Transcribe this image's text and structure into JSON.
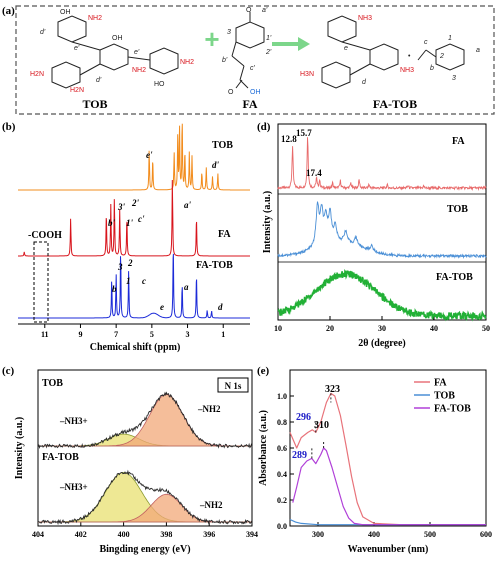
{
  "panel_a": {
    "label": "(a)",
    "names": [
      "TOB",
      "FA",
      "FA-TOB"
    ],
    "plus": "+",
    "dot": "•",
    "tob_atoms": {
      "nh2": "NH2",
      "h2n": "H2N",
      "oh": "OH",
      "ho": "HO",
      "o": "O",
      "d_prime": "d'",
      "e_prime": "e'"
    },
    "fa_atoms": {
      "a_prime": "a'",
      "one_prime": "1'",
      "two_prime": "2'",
      "three": "3",
      "b_prime": "b'",
      "c_prime": "c'",
      "oh": "OH",
      "o": "O"
    },
    "fatob_atoms": {
      "nh3": "NH3",
      "h3n": "H3N",
      "d": "d",
      "e": "e",
      "a": "a",
      "b": "b",
      "c": "c",
      "n1": "1",
      "n2": "2",
      "n3": "3"
    }
  },
  "panel_b": {
    "label": "(b)",
    "trace_labels": [
      "TOB",
      "FA",
      "FA-TOB"
    ],
    "annotation": "-COOH",
    "peak_labels_tob": [
      "e'",
      "d'"
    ],
    "peak_labels_fa": [
      "3'",
      "2'",
      "1'",
      "b'",
      "c'",
      "a'"
    ],
    "peak_labels_fatob": [
      "3",
      "2",
      "1",
      "b",
      "c",
      "e",
      "a",
      "d"
    ],
    "colors": {
      "TOB": "#f28c1c",
      "FA": "#d8141c",
      "FA-TOB": "#1c2bd8"
    }
  },
  "panel_c": {
    "label": "(c)",
    "badge": "N 1s",
    "trace_labels": [
      "TOB",
      "FA-TOB"
    ],
    "peak_nh3": "–NH3+",
    "peak_nh2": "–NH2"
  },
  "panel_d": {
    "label": "(d)",
    "trace_labels": [
      "FA",
      "TOB",
      "FA-TOB"
    ],
    "peak_labels": [
      "12.8",
      "15.7",
      "17.4"
    ]
  },
  "panel_e": {
    "label": "(e)",
    "peak_labels": [
      "323",
      "310",
      "296",
      "289"
    ]
  },
  "chart_data": [
    {
      "type": "line",
      "title": "",
      "xlabel": "Chemical shift (ppm)",
      "ylabel": "",
      "xlim": [
        12.5,
        -0.5
      ],
      "xticks": [
        11,
        9,
        7,
        5,
        3,
        1
      ],
      "series": [
        {
          "name": "TOB",
          "peaks": [
            [
              5.15,
              0.55
            ],
            [
              4.95,
              0.45
            ],
            [
              3.75,
              0.5
            ],
            [
              3.55,
              0.7
            ],
            [
              3.45,
              0.9
            ],
            [
              3.3,
              1.0
            ],
            [
              3.15,
              0.55
            ],
            [
              2.9,
              0.5
            ],
            [
              2.75,
              0.45
            ],
            [
              2.2,
              0.25
            ],
            [
              1.95,
              0.3
            ],
            [
              1.6,
              0.18
            ],
            [
              1.3,
              0.22
            ]
          ]
        },
        {
          "name": "FA",
          "peaks": [
            [
              12.15,
              0.05
            ],
            [
              9.55,
              0.45
            ],
            [
              7.55,
              0.55
            ],
            [
              7.3,
              0.6
            ],
            [
              7.1,
              0.7
            ],
            [
              6.8,
              0.55
            ],
            [
              6.4,
              0.5
            ],
            [
              3.85,
              0.95
            ],
            [
              2.5,
              0.5
            ]
          ]
        },
        {
          "name": "FA-TOB",
          "peaks": [
            [
              7.25,
              0.5
            ],
            [
              7.0,
              0.55
            ],
            [
              6.75,
              0.9
            ],
            [
              6.3,
              0.6
            ],
            [
              3.8,
              1.0
            ],
            [
              3.3,
              0.45
            ],
            [
              2.5,
              0.6
            ],
            [
              1.9,
              0.1
            ],
            [
              1.65,
              0.09
            ]
          ]
        }
      ]
    },
    {
      "type": "line",
      "title": "",
      "xlabel": "Bingding energy (eV)",
      "ylabel": "Intensity (a.u.)",
      "xlim": [
        404,
        394
      ],
      "xticks": [
        404,
        402,
        400,
        398,
        396,
        394
      ],
      "series": [
        {
          "name": "TOB",
          "components": [
            {
              "label": "–NH3+",
              "center": 400.0,
              "height": 0.18,
              "width": 1.0
            },
            {
              "label": "–NH2",
              "center": 398.0,
              "height": 0.78,
              "width": 1.1
            }
          ]
        },
        {
          "name": "FA-TOB",
          "components": [
            {
              "label": "–NH3+",
              "center": 400.0,
              "height": 0.75,
              "width": 1.2
            },
            {
              "label": "–NH2",
              "center": 398.0,
              "height": 0.42,
              "width": 1.0
            }
          ]
        }
      ]
    },
    {
      "type": "line",
      "title": "",
      "xlabel": "2θ (degree)",
      "ylabel": "Intensity (a.u.)",
      "xlim": [
        10,
        50
      ],
      "xticks": [
        10,
        20,
        30,
        40,
        50
      ],
      "series": [
        {
          "name": "FA",
          "peaks": [
            [
              12.8,
              0.8
            ],
            [
              15.7,
              1.0
            ],
            [
              17.4,
              0.2
            ],
            [
              18.0,
              0.15
            ],
            [
              20.5,
              0.1
            ],
            [
              22.0,
              0.14
            ],
            [
              24.0,
              0.1
            ],
            [
              25.6,
              0.16
            ],
            [
              27.5,
              0.07
            ],
            [
              31.0,
              0.06
            ],
            [
              35.0,
              0.05
            ],
            [
              38.0,
              0.04
            ]
          ]
        },
        {
          "name": "TOB",
          "peaks": [
            [
              17.6,
              0.75
            ],
            [
              18.4,
              0.6
            ],
            [
              19.2,
              0.45
            ],
            [
              20.0,
              0.55
            ],
            [
              21.0,
              0.3
            ],
            [
              23.0,
              0.22
            ],
            [
              25.0,
              0.15
            ],
            [
              28.0,
              0.1
            ]
          ]
        },
        {
          "name": "FA-TOB",
          "broad": [
            [
              23.0,
              0.7,
              8.0
            ]
          ]
        }
      ]
    },
    {
      "type": "line",
      "title": "",
      "xlabel": "Wavenumber (nm)",
      "ylabel": "Absorbance (a.u.)",
      "xlim": [
        250,
        600
      ],
      "ylim": [
        0.0,
        1.2
      ],
      "xticks": [
        300,
        400,
        500,
        600
      ],
      "yticks": [
        0.0,
        0.2,
        0.4,
        0.6,
        0.8,
        1.0
      ],
      "series": [
        {
          "name": "FA",
          "x": [
            250,
            262,
            270,
            282,
            290,
            296,
            305,
            315,
            323,
            330,
            340,
            350,
            360,
            370,
            380,
            400,
            450,
            500,
            550,
            600
          ],
          "y": [
            0.72,
            0.6,
            0.68,
            0.72,
            0.74,
            0.72,
            0.8,
            0.95,
            1.02,
            1.0,
            0.85,
            0.62,
            0.38,
            0.18,
            0.07,
            0.02,
            0.01,
            0.01,
            0.01,
            0.01
          ]
        },
        {
          "name": "TOB",
          "x": [
            250,
            260,
            270,
            300,
            350,
            400,
            450,
            500,
            550,
            600
          ],
          "y": [
            0.05,
            0.03,
            0.02,
            0.01,
            0.01,
            0.01,
            0.01,
            0.01,
            0.01,
            0.01
          ]
        },
        {
          "name": "FA-TOB",
          "x": [
            255,
            262,
            270,
            280,
            289,
            296,
            305,
            310,
            315,
            325,
            335,
            345,
            355,
            365,
            380,
            400,
            450,
            500,
            550,
            600
          ],
          "y": [
            0.18,
            0.3,
            0.45,
            0.5,
            0.52,
            0.48,
            0.55,
            0.6,
            0.58,
            0.45,
            0.3,
            0.15,
            0.06,
            0.02,
            0.01,
            0.01,
            0.01,
            0.01,
            0.01,
            0.01
          ]
        }
      ],
      "colors": {
        "FA": "#e8737a",
        "TOB": "#4a8fd6",
        "FA-TOB": "#b040d8"
      }
    }
  ]
}
